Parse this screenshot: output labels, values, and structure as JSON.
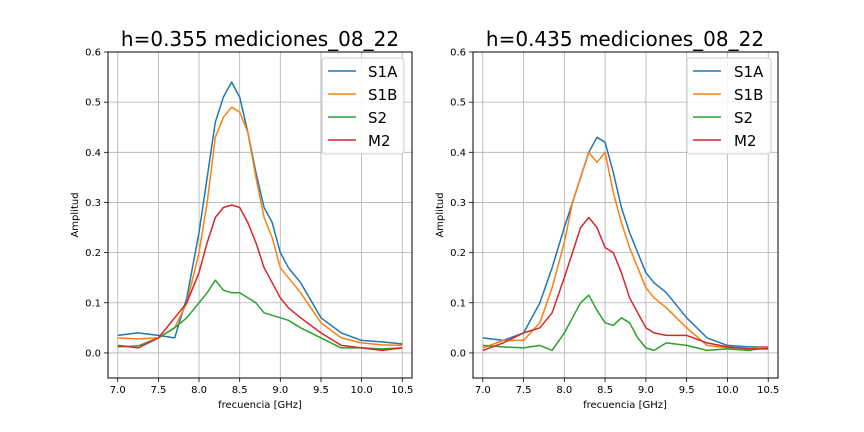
{
  "chart_data": [
    {
      "type": "line",
      "title": "h=0.355 mediciones_08_22",
      "xlabel": "frecuencia [GHz]",
      "ylabel": "Amplitud",
      "xlim": [
        6.88,
        10.62
      ],
      "ylim": [
        -0.05,
        0.6
      ],
      "xticks": [
        7.0,
        7.5,
        8.0,
        8.5,
        9.0,
        9.5,
        10.0,
        10.5
      ],
      "xtick_labels": [
        "7.0",
        "7.5",
        "8.0",
        "8.5",
        "9.0",
        "9.5",
        "10.0",
        "10.5"
      ],
      "yticks": [
        0.0,
        0.1,
        0.2,
        0.3,
        0.4,
        0.5,
        0.6
      ],
      "ytick_labels": [
        "0.0",
        "0.1",
        "0.2",
        "0.3",
        "0.4",
        "0.5",
        "0.6"
      ],
      "grid": true,
      "legend_position": "top-right",
      "x": [
        7.0,
        7.25,
        7.5,
        7.7,
        7.85,
        8.0,
        8.1,
        8.2,
        8.3,
        8.4,
        8.5,
        8.6,
        8.7,
        8.8,
        8.9,
        9.0,
        9.1,
        9.25,
        9.5,
        9.75,
        10.0,
        10.25,
        10.5
      ],
      "series": [
        {
          "name": "S1A",
          "color": "#1f77b4",
          "values": [
            0.035,
            0.04,
            0.035,
            0.03,
            0.11,
            0.24,
            0.35,
            0.46,
            0.51,
            0.54,
            0.51,
            0.44,
            0.36,
            0.29,
            0.26,
            0.2,
            0.17,
            0.14,
            0.07,
            0.04,
            0.025,
            0.022,
            0.018
          ]
        },
        {
          "name": "S1B",
          "color": "#ff7f0e",
          "values": [
            0.03,
            0.028,
            0.03,
            0.05,
            0.1,
            0.2,
            0.3,
            0.43,
            0.47,
            0.49,
            0.48,
            0.44,
            0.35,
            0.27,
            0.23,
            0.17,
            0.15,
            0.12,
            0.06,
            0.03,
            0.02,
            0.016,
            0.015
          ]
        },
        {
          "name": "S2",
          "color": "#2ca02c",
          "values": [
            0.012,
            0.014,
            0.03,
            0.05,
            0.07,
            0.1,
            0.12,
            0.145,
            0.125,
            0.12,
            0.12,
            0.11,
            0.1,
            0.08,
            0.075,
            0.07,
            0.065,
            0.05,
            0.03,
            0.01,
            0.01,
            0.008,
            0.01
          ]
        },
        {
          "name": "M2",
          "color": "#d62728",
          "values": [
            0.015,
            0.01,
            0.03,
            0.07,
            0.1,
            0.16,
            0.22,
            0.27,
            0.29,
            0.295,
            0.29,
            0.26,
            0.22,
            0.17,
            0.14,
            0.11,
            0.09,
            0.07,
            0.04,
            0.015,
            0.01,
            0.005,
            0.01
          ]
        }
      ]
    },
    {
      "type": "line",
      "title": "h=0.435 mediciones_08_22",
      "xlabel": "frecuencia [GHz]",
      "ylabel": "Amplitud",
      "xlim": [
        6.88,
        10.62
      ],
      "ylim": [
        -0.05,
        0.6
      ],
      "xticks": [
        7.0,
        7.5,
        8.0,
        8.5,
        9.0,
        9.5,
        10.0,
        10.5
      ],
      "xtick_labels": [
        "7.0",
        "7.5",
        "8.0",
        "8.5",
        "9.0",
        "9.5",
        "10.0",
        "10.5"
      ],
      "yticks": [
        0.0,
        0.1,
        0.2,
        0.3,
        0.4,
        0.5,
        0.6
      ],
      "ytick_labels": [
        "0.0",
        "0.1",
        "0.2",
        "0.3",
        "0.4",
        "0.5",
        "0.6"
      ],
      "grid": true,
      "legend_position": "top-right",
      "x": [
        7.0,
        7.25,
        7.5,
        7.7,
        7.85,
        8.0,
        8.1,
        8.2,
        8.3,
        8.4,
        8.5,
        8.6,
        8.7,
        8.8,
        8.9,
        9.0,
        9.1,
        9.25,
        9.5,
        9.75,
        10.0,
        10.25,
        10.5
      ],
      "series": [
        {
          "name": "S1A",
          "color": "#1f77b4",
          "values": [
            0.03,
            0.025,
            0.04,
            0.1,
            0.17,
            0.25,
            0.3,
            0.35,
            0.4,
            0.43,
            0.42,
            0.36,
            0.29,
            0.24,
            0.2,
            0.16,
            0.14,
            0.12,
            0.07,
            0.03,
            0.015,
            0.012,
            0.012
          ]
        },
        {
          "name": "S1B",
          "color": "#ff7f0e",
          "values": [
            0.01,
            0.025,
            0.025,
            0.06,
            0.13,
            0.22,
            0.3,
            0.35,
            0.4,
            0.38,
            0.4,
            0.32,
            0.26,
            0.21,
            0.17,
            0.13,
            0.11,
            0.09,
            0.05,
            0.015,
            0.01,
            0.01,
            0.012
          ]
        },
        {
          "name": "S2",
          "color": "#2ca02c",
          "values": [
            0.015,
            0.012,
            0.01,
            0.015,
            0.005,
            0.04,
            0.07,
            0.1,
            0.115,
            0.085,
            0.06,
            0.055,
            0.07,
            0.06,
            0.03,
            0.01,
            0.005,
            0.02,
            0.015,
            0.005,
            0.008,
            0.005,
            0.01
          ]
        },
        {
          "name": "M2",
          "color": "#d62728",
          "values": [
            0.005,
            0.02,
            0.04,
            0.05,
            0.08,
            0.15,
            0.2,
            0.25,
            0.27,
            0.25,
            0.21,
            0.2,
            0.16,
            0.11,
            0.08,
            0.05,
            0.04,
            0.035,
            0.035,
            0.02,
            0.012,
            0.008,
            0.008
          ]
        }
      ]
    }
  ]
}
